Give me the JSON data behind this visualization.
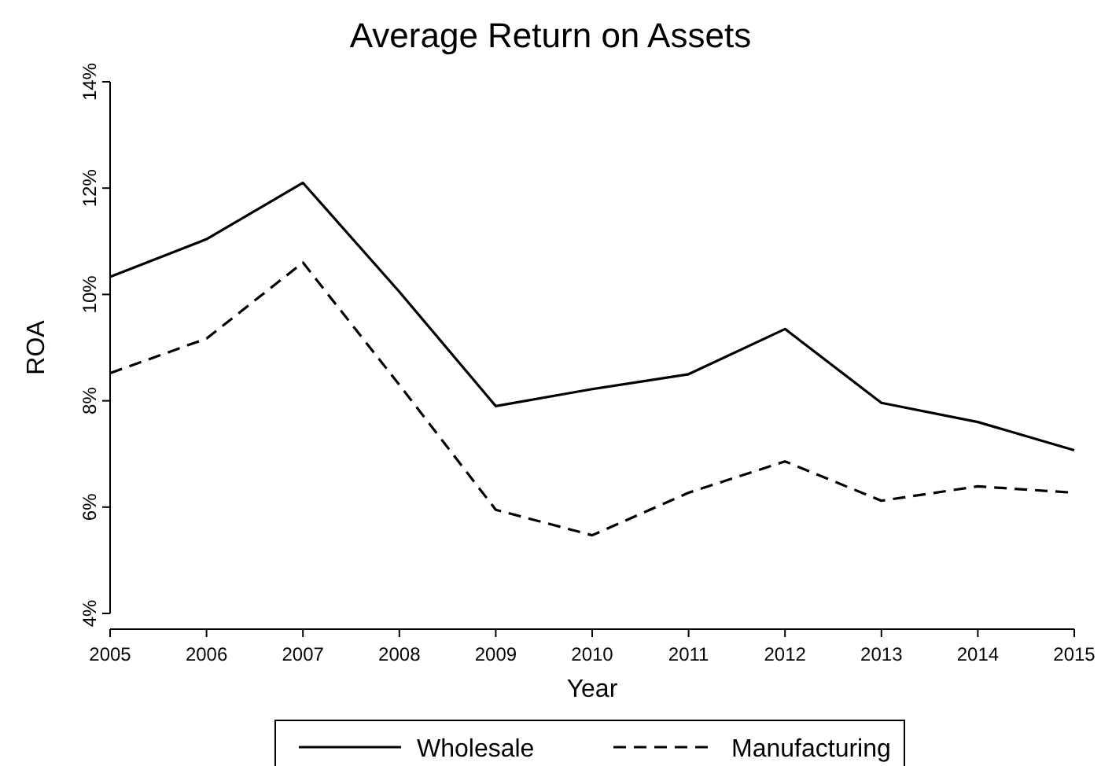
{
  "chart_data": {
    "type": "line",
    "title": "Average Return on Assets",
    "xlabel": "Year",
    "ylabel": "ROA",
    "x": [
      2005,
      2006,
      2007,
      2008,
      2009,
      2010,
      2011,
      2012,
      2013,
      2014,
      2015
    ],
    "xlim": [
      2005,
      2015
    ],
    "xticks": [
      2005,
      2006,
      2007,
      2008,
      2009,
      2010,
      2011,
      2012,
      2013,
      2014,
      2015
    ],
    "ylim": [
      4,
      14
    ],
    "yticks": [
      {
        "value": 4,
        "label": "4%"
      },
      {
        "value": 6,
        "label": "6%"
      },
      {
        "value": 8,
        "label": "8%"
      },
      {
        "value": 10,
        "label": "10%"
      },
      {
        "value": 12,
        "label": "12%"
      },
      {
        "value": 14,
        "label": "14%"
      }
    ],
    "grid": false,
    "legend": "bottom",
    "marker": "none",
    "series": [
      {
        "name": "Wholesale",
        "color": "#000000",
        "line_style": "solid",
        "values": [
          10.33,
          11.04,
          12.1,
          10.05,
          7.9,
          8.22,
          8.5,
          9.35,
          7.96,
          7.6,
          7.07
        ]
      },
      {
        "name": "Manufacturing",
        "color": "#000000",
        "line_style": "dashed",
        "values": [
          8.52,
          9.17,
          10.6,
          8.3,
          5.95,
          5.47,
          6.27,
          6.86,
          6.12,
          6.39,
          6.27
        ]
      }
    ]
  }
}
